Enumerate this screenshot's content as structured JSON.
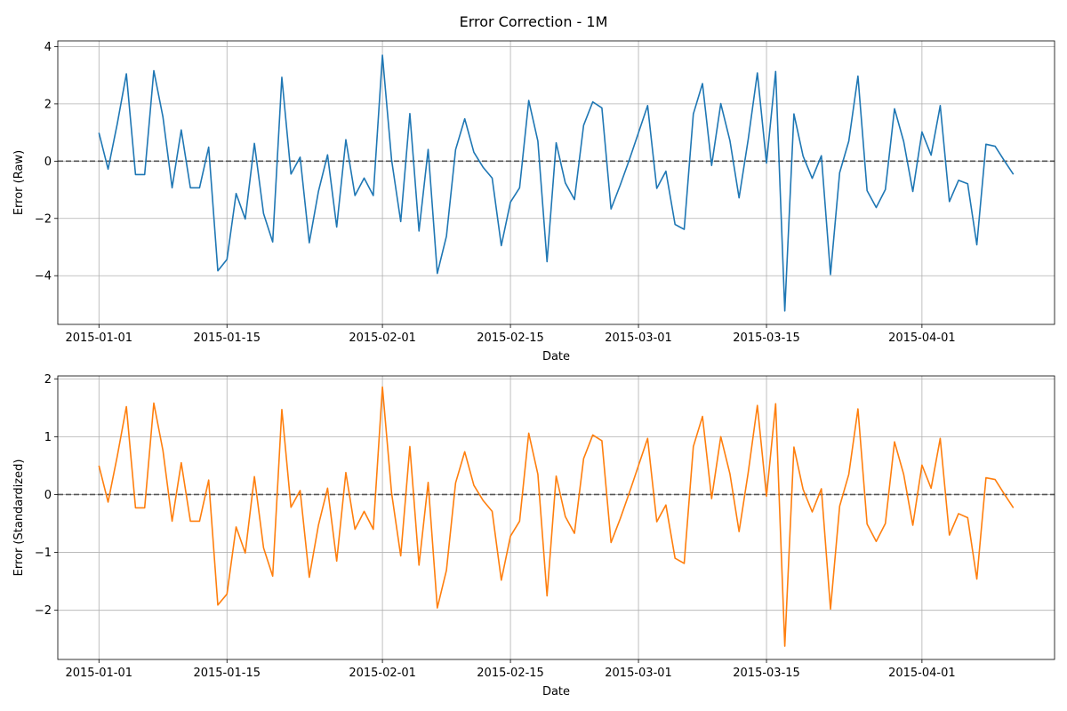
{
  "figure": {
    "title": "Error Correction - 1M"
  },
  "chart_data": [
    {
      "type": "line",
      "xlabel": "Date",
      "ylabel": "Error (Raw)",
      "x_start": "2015-01-01",
      "x_step": "1 day",
      "x_ticks": [
        "2015-01-01",
        "2015-01-15",
        "2015-02-01",
        "2015-02-15",
        "2015-03-01",
        "2015-03-15",
        "2015-04-01"
      ],
      "y_ticks": [
        -4,
        -2,
        0,
        2,
        4
      ],
      "ylim": [
        -5.7,
        4.2
      ],
      "grid": true,
      "reference_line": {
        "y": 0,
        "style": "dashed",
        "color": "#555555"
      },
      "series": [
        {
          "color": "#1f77b4",
          "values": [
            0.99,
            -0.28,
            1.3,
            3.05,
            -0.47,
            -0.47,
            3.16,
            1.54,
            -0.93,
            1.09,
            -0.93,
            -0.93,
            0.49,
            -3.83,
            -3.43,
            -1.13,
            -2.02,
            0.62,
            -1.83,
            -2.82,
            2.93,
            -0.45,
            0.14,
            -2.85,
            -1.06,
            0.22,
            -2.3,
            0.75,
            -1.2,
            -0.59,
            -1.2,
            3.7,
            0.05,
            -2.11,
            1.66,
            -2.44,
            0.41,
            -3.92,
            -2.62,
            0.4,
            1.48,
            0.31,
            -0.21,
            -0.59,
            -2.95,
            -1.43,
            -0.93,
            2.12,
            0.7,
            -3.51,
            0.64,
            -0.76,
            -1.34,
            1.25,
            2.07,
            1.86,
            -1.67,
            -0.84,
            0.05,
            0.99,
            1.94,
            -0.95,
            -0.35,
            -2.21,
            -2.38,
            1.65,
            2.71,
            -0.15,
            2.01,
            0.72,
            -1.28,
            0.76,
            3.08,
            -0.07,
            3.13,
            -5.23,
            1.65,
            0.18,
            -0.6,
            0.19,
            -3.96,
            -0.4,
            0.7,
            2.97,
            -1.03,
            -1.62,
            -0.99,
            1.83,
            0.69,
            -1.06,
            1.02,
            0.21,
            1.94,
            -1.41,
            -0.67,
            -0.79,
            -2.92,
            0.59,
            0.52,
            0.02,
            -0.46
          ]
        }
      ]
    },
    {
      "type": "line",
      "xlabel": "Date",
      "ylabel": "Error (Standardized)",
      "x_start": "2015-01-01",
      "x_step": "1 day",
      "x_ticks": [
        "2015-01-01",
        "2015-01-15",
        "2015-02-01",
        "2015-02-15",
        "2015-03-01",
        "2015-03-15",
        "2015-04-01"
      ],
      "y_ticks": [
        -2,
        -1,
        0,
        1,
        2
      ],
      "ylim": [
        -2.85,
        2.05
      ],
      "grid": true,
      "reference_line": {
        "y": 0,
        "style": "dashed",
        "color": "#555555"
      },
      "series": [
        {
          "color": "#ff7f0e",
          "values": [
            0.5,
            -0.13,
            0.66,
            1.52,
            -0.23,
            -0.23,
            1.58,
            0.76,
            -0.46,
            0.55,
            -0.46,
            -0.46,
            0.25,
            -1.91,
            -1.72,
            -0.56,
            -1.01,
            0.31,
            -0.92,
            -1.41,
            1.47,
            -0.22,
            0.07,
            -1.43,
            -0.53,
            0.11,
            -1.15,
            0.38,
            -0.6,
            -0.29,
            -0.6,
            1.86,
            0.03,
            -1.06,
            0.83,
            -1.22,
            0.21,
            -1.96,
            -1.31,
            0.2,
            0.74,
            0.16,
            -0.1,
            -0.29,
            -1.48,
            -0.72,
            -0.46,
            1.06,
            0.35,
            -1.75,
            0.32,
            -0.38,
            -0.67,
            0.62,
            1.03,
            0.93,
            -0.83,
            -0.42,
            0.03,
            0.5,
            0.97,
            -0.47,
            -0.18,
            -1.1,
            -1.19,
            0.83,
            1.35,
            -0.07,
            1.0,
            0.36,
            -0.64,
            0.38,
            1.54,
            -0.03,
            1.57,
            -2.62,
            0.82,
            0.09,
            -0.3,
            0.1,
            -1.98,
            -0.2,
            0.35,
            1.48,
            -0.51,
            -0.81,
            -0.5,
            0.91,
            0.35,
            -0.53,
            0.51,
            0.11,
            0.97,
            -0.7,
            -0.33,
            -0.4,
            -1.46,
            0.29,
            0.26,
            0.01,
            -0.23
          ]
        }
      ]
    }
  ]
}
